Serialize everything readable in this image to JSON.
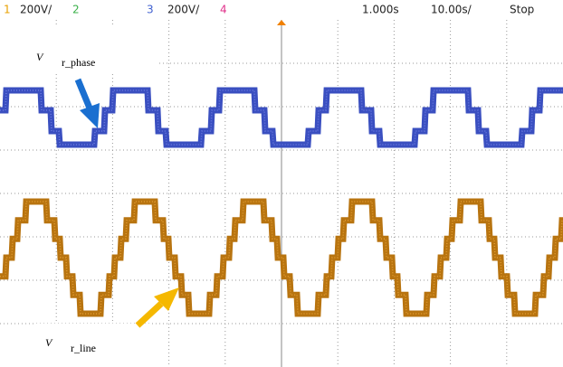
{
  "header": {
    "ch1": "1",
    "ch1_scale": "200V/",
    "ch2": "2",
    "ch3": "3",
    "ch3_scale": "200V/",
    "ch4": "4",
    "delay": "1.000s",
    "timebase": "10.00s/",
    "status": "Stop"
  },
  "annotations": {
    "phase_symbol": "V",
    "phase_subscript": "r_phase",
    "line_symbol": "V",
    "line_subscript": "r_line"
  }
}
